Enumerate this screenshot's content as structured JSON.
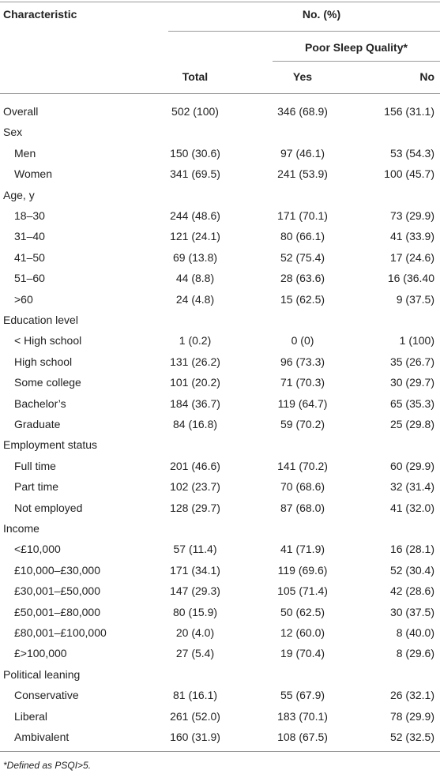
{
  "header": {
    "characteristic": "Characteristic",
    "group": "No. (%)",
    "subgroup": "Poor Sleep Quality*",
    "columns": [
      "Total",
      "Yes",
      "No"
    ]
  },
  "rows": [
    [
      "Overall",
      "502 (100)",
      "346 (68.9)",
      "156 (31.1)"
    ],
    [
      "Sex"
    ],
    [
      "Men",
      "150 (30.6)",
      "97 (46.1)",
      "53 (54.3)"
    ],
    [
      "Women",
      "341 (69.5)",
      "241 (53.9)",
      "100 (45.7)"
    ],
    [
      "Age, y"
    ],
    [
      "18–30",
      "244 (48.6)",
      "171 (70.1)",
      "73 (29.9)"
    ],
    [
      "31–40",
      "121 (24.1)",
      "80 (66.1)",
      "41 (33.9)"
    ],
    [
      "41–50",
      "69 (13.8)",
      "52 (75.4)",
      "17 (24.6)"
    ],
    [
      "51–60",
      "44 (8.8)",
      "28 (63.6)",
      "16 (36.40"
    ],
    [
      ">60",
      "24 (4.8)",
      "15 (62.5)",
      "9 (37.5)"
    ],
    [
      "Education level"
    ],
    [
      "< High school",
      "1 (0.2)",
      "0 (0)",
      "1 (100)"
    ],
    [
      "High school",
      "131 (26.2)",
      "96 (73.3)",
      "35 (26.7)"
    ],
    [
      "Some college",
      "101 (20.2)",
      "71 (70.3)",
      "30 (29.7)"
    ],
    [
      "Bachelor’s",
      "184 (36.7)",
      "119 (64.7)",
      "65 (35.3)"
    ],
    [
      "Graduate",
      "84 (16.8)",
      "59 (70.2)",
      "25 (29.8)"
    ],
    [
      "Employment status"
    ],
    [
      "Full time",
      "201 (46.6)",
      "141 (70.2)",
      "60 (29.9)"
    ],
    [
      "Part time",
      "102 (23.7)",
      "70 (68.6)",
      "32 (31.4)"
    ],
    [
      "Not employed",
      "128 (29.7)",
      "87 (68.0)",
      "41 (32.0)"
    ],
    [
      "Income"
    ],
    [
      "<£10,000",
      "57 (11.4)",
      "41 (71.9)",
      "16 (28.1)"
    ],
    [
      "£10,000–£30,000",
      "171 (34.1)",
      "119 (69.6)",
      "52 (30.4)"
    ],
    [
      "£30,001–£50,000",
      "147 (29.3)",
      "105 (71.4)",
      "42 (28.6)"
    ],
    [
      "£50,001–£80,000",
      "80 (15.9)",
      "50 (62.5)",
      "30 (37.5)"
    ],
    [
      "£80,001–£100,000",
      "20 (4.0)",
      "12 (60.0)",
      "8 (40.0)"
    ],
    [
      "£>100,000",
      "27 (5.4)",
      "19 (70.4)",
      "8 (29.6)"
    ],
    [
      "Political leaning"
    ],
    [
      "Conservative",
      "81 (16.1)",
      "55 (67.9)",
      "26 (32.1)"
    ],
    [
      "Liberal",
      "261 (52.0)",
      "183 (70.1)",
      "78 (29.9)"
    ],
    [
      "Ambivalent",
      "160 (31.9)",
      "108 (67.5)",
      "52 (32.5)"
    ]
  ],
  "footnote": "*Defined as PSQI>5."
}
